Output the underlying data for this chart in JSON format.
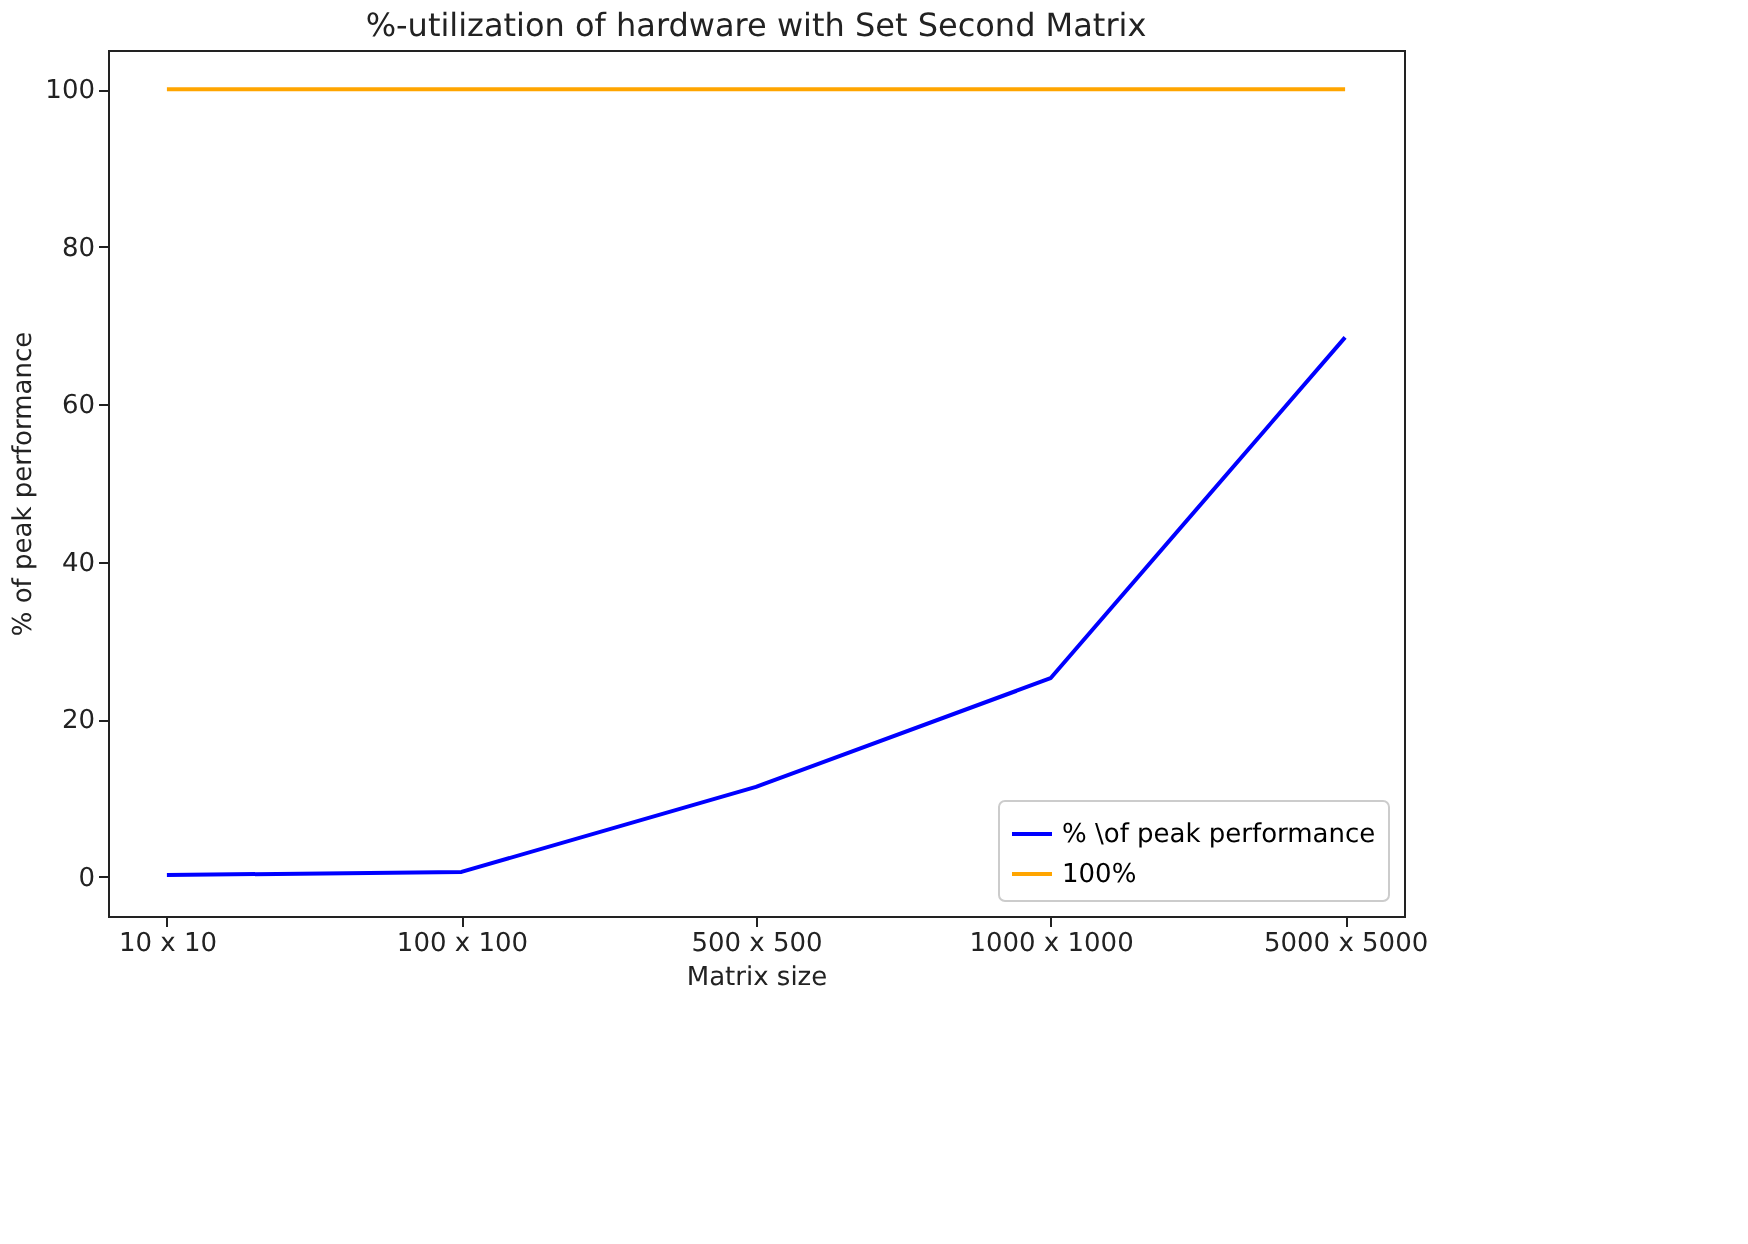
{
  "chart_data": {
    "type": "line",
    "title": "%-utilization of hardware with Set Second Matrix",
    "xlabel": "Matrix size",
    "ylabel": "% of peak performance",
    "categories": [
      "10 x 10",
      "100 x 100",
      "500 x 500",
      "1000 x 1000",
      "5000 x 5000"
    ],
    "series": [
      {
        "name": "% \\of peak performance",
        "color": "#0000ff",
        "values": [
          0.2,
          0.6,
          11.4,
          25.2,
          68.5
        ]
      },
      {
        "name": "100%",
        "color": "#ffa500",
        "values": [
          100,
          100,
          100,
          100,
          100
        ]
      }
    ],
    "ylim": [
      -5,
      105
    ],
    "yticks": [
      0,
      20,
      40,
      60,
      80,
      100
    ],
    "grid": false,
    "legend": "bottom right",
    "marker": "none",
    "line_style": "solid"
  }
}
